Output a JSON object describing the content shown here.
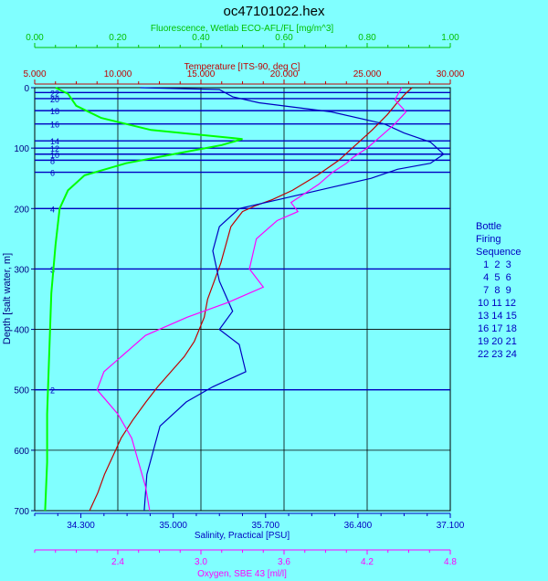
{
  "chart_data": {
    "type": "line",
    "title": "oc47101022.hex",
    "y_axis": {
      "label": "Depth [salt water, m]",
      "lim": [
        0,
        700
      ],
      "ticks": [
        "0",
        "100",
        "200",
        "300",
        "400",
        "500",
        "600",
        "700"
      ],
      "inverted": true
    },
    "top_axes": [
      {
        "key": "fluorescence",
        "label": "Fluorescence, Wetlab ECO-AFL/FL [mg/m^3]",
        "lim": [
          0,
          1
        ],
        "ticks": [
          "0.00",
          "0.20",
          "0.40",
          "0.60",
          "0.80",
          "1.00"
        ],
        "color": "#00c000"
      },
      {
        "key": "temperature",
        "label": "Temperature [ITS-90, deg C]",
        "lim": [
          5,
          30
        ],
        "ticks": [
          "5.000",
          "10.000",
          "15.000",
          "20.000",
          "25.000",
          "30.000"
        ],
        "color": "#c00000"
      }
    ],
    "bottom_axes": [
      {
        "key": "salinity",
        "label": "Salinity, Practical [PSU]",
        "lim": [
          33.95,
          37.1
        ],
        "ticks": [
          "34.300",
          "35.000",
          "35.700",
          "36.400",
          "37.100"
        ],
        "tick_values": [
          34.3,
          35.0,
          35.7,
          36.4,
          37.1
        ],
        "color": "#0000c0"
      },
      {
        "key": "oxygen",
        "label": "Oxygen, SBE 43 [ml/l]",
        "lim": [
          1.8,
          4.8
        ],
        "ticks": [
          "2.4",
          "3.0",
          "3.6",
          "4.2",
          "4.8"
        ],
        "tick_values": [
          2.4,
          3.0,
          3.6,
          4.2,
          4.8
        ],
        "color": "#ff00ff"
      }
    ],
    "series": [
      {
        "key": "temperature",
        "color": "#c00000",
        "points": [
          [
            27.7,
            0
          ],
          [
            27.3,
            10
          ],
          [
            26.8,
            25
          ],
          [
            26.2,
            45
          ],
          [
            25.3,
            70
          ],
          [
            24.3,
            95
          ],
          [
            23.3,
            120
          ],
          [
            22.0,
            145
          ],
          [
            20.5,
            170
          ],
          [
            19.3,
            185
          ],
          [
            18.3,
            195
          ],
          [
            17.5,
            205
          ],
          [
            16.8,
            230
          ],
          [
            16.5,
            260
          ],
          [
            16.2,
            290
          ],
          [
            15.8,
            320
          ],
          [
            15.4,
            350
          ],
          [
            15.2,
            380
          ],
          [
            14.6,
            420
          ],
          [
            14.0,
            445
          ],
          [
            13.2,
            470
          ],
          [
            12.4,
            495
          ],
          [
            11.7,
            520
          ],
          [
            10.9,
            550
          ],
          [
            10.2,
            580
          ],
          [
            9.7,
            610
          ],
          [
            9.2,
            640
          ],
          [
            8.8,
            670
          ],
          [
            8.3,
            700
          ]
        ]
      },
      {
        "key": "salinity",
        "color": "#0000c0",
        "points": [
          [
            34.75,
            0
          ],
          [
            35.35,
            3
          ],
          [
            35.45,
            15
          ],
          [
            35.65,
            25
          ],
          [
            36.2,
            40
          ],
          [
            36.6,
            60
          ],
          [
            36.75,
            75
          ],
          [
            36.95,
            90
          ],
          [
            37.05,
            110
          ],
          [
            36.95,
            125
          ],
          [
            36.7,
            135
          ],
          [
            36.5,
            150
          ],
          [
            36.2,
            165
          ],
          [
            35.8,
            185
          ],
          [
            35.5,
            200
          ],
          [
            35.35,
            230
          ],
          [
            35.3,
            270
          ],
          [
            35.35,
            320
          ],
          [
            35.45,
            370
          ],
          [
            35.35,
            400
          ],
          [
            35.5,
            425
          ],
          [
            35.55,
            470
          ],
          [
            35.3,
            495
          ],
          [
            35.1,
            520
          ],
          [
            34.9,
            560
          ],
          [
            34.85,
            600
          ],
          [
            34.8,
            640
          ],
          [
            34.78,
            700
          ]
        ]
      },
      {
        "key": "oxygen",
        "color": "#ff00ff",
        "points": [
          [
            4.45,
            0
          ],
          [
            4.4,
            20
          ],
          [
            4.48,
            40
          ],
          [
            4.4,
            60
          ],
          [
            4.3,
            80
          ],
          [
            4.2,
            100
          ],
          [
            4.1,
            115
          ],
          [
            4.05,
            125
          ],
          [
            3.95,
            140
          ],
          [
            3.85,
            160
          ],
          [
            3.75,
            175
          ],
          [
            3.65,
            190
          ],
          [
            3.7,
            205
          ],
          [
            3.55,
            220
          ],
          [
            3.4,
            250
          ],
          [
            3.35,
            300
          ],
          [
            3.45,
            330
          ],
          [
            3.2,
            355
          ],
          [
            2.9,
            380
          ],
          [
            2.6,
            410
          ],
          [
            2.45,
            440
          ],
          [
            2.3,
            470
          ],
          [
            2.25,
            500
          ],
          [
            2.4,
            540
          ],
          [
            2.5,
            580
          ],
          [
            2.55,
            620
          ],
          [
            2.6,
            660
          ],
          [
            2.63,
            700
          ]
        ]
      },
      {
        "key": "fluorescence",
        "color": "#00ff00",
        "points": [
          [
            0.05,
            0
          ],
          [
            0.08,
            10
          ],
          [
            0.1,
            30
          ],
          [
            0.16,
            50
          ],
          [
            0.28,
            70
          ],
          [
            0.5,
            85
          ],
          [
            0.45,
            95
          ],
          [
            0.35,
            108
          ],
          [
            0.22,
            125
          ],
          [
            0.12,
            145
          ],
          [
            0.08,
            170
          ],
          [
            0.06,
            200
          ],
          [
            0.05,
            260
          ],
          [
            0.04,
            340
          ],
          [
            0.035,
            440
          ],
          [
            0.03,
            540
          ],
          [
            0.03,
            620
          ],
          [
            0.025,
            700
          ]
        ]
      }
    ],
    "bottle_firings": {
      "depths": [
        8,
        18,
        38,
        60,
        88,
        100,
        110,
        120,
        140,
        200,
        300,
        500
      ],
      "labels": [
        "22",
        "20",
        "18",
        "16",
        "14",
        "12",
        "10",
        "8",
        "6",
        "4",
        "3",
        "2"
      ]
    },
    "grid": true,
    "legend": {
      "title_lines": [
        "Bottle",
        "Firing",
        "Sequence"
      ],
      "rows": [
        "  1  2  3",
        "  4  5  6",
        "  7  8  9",
        "10 11 12",
        "13 14 15",
        "16 17 18",
        "19 20 21",
        "22 23 24"
      ]
    }
  }
}
